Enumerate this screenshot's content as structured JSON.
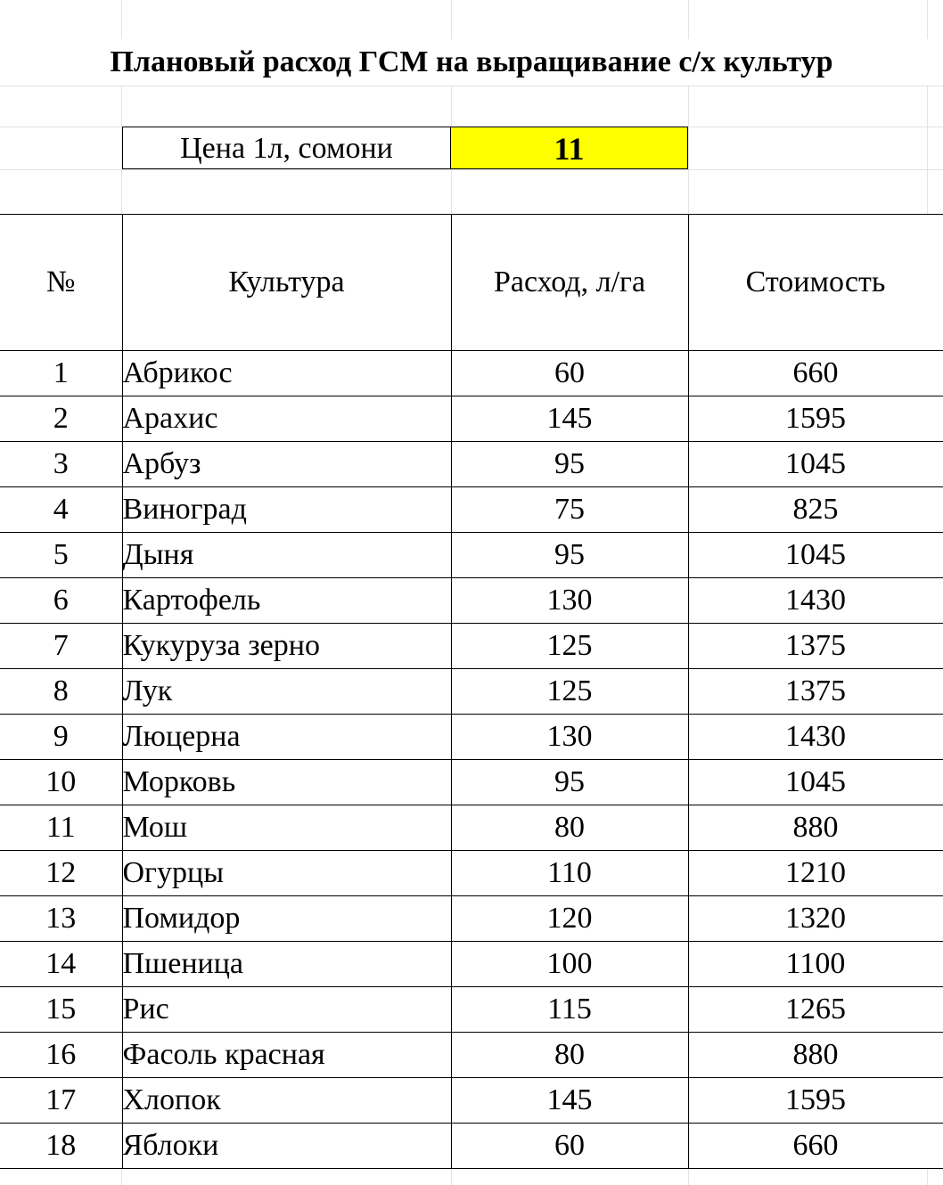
{
  "title": "Плановый расход ГСМ на выращивание с/х культур",
  "price": {
    "label": "Цена 1л, сомони",
    "value": "11",
    "highlight_color": "#ffff00"
  },
  "table": {
    "headers": [
      "№",
      "Культура",
      "Расход, л/га",
      "Стоимость"
    ],
    "rows": [
      {
        "num": "1",
        "crop": "Абрикос",
        "rate": "60",
        "cost": "660"
      },
      {
        "num": "2",
        "crop": "Арахис",
        "rate": "145",
        "cost": "1595"
      },
      {
        "num": "3",
        "crop": "Арбуз",
        "rate": "95",
        "cost": "1045"
      },
      {
        "num": "4",
        "crop": "Виноград",
        "rate": "75",
        "cost": "825"
      },
      {
        "num": "5",
        "crop": "Дыня",
        "rate": "95",
        "cost": "1045"
      },
      {
        "num": "6",
        "crop": "Картофель",
        "rate": "130",
        "cost": "1430"
      },
      {
        "num": "7",
        "crop": "Кукуруза зерно",
        "rate": "125",
        "cost": "1375"
      },
      {
        "num": "8",
        "crop": "Лук",
        "rate": "125",
        "cost": "1375"
      },
      {
        "num": "9",
        "crop": "Люцерна",
        "rate": "130",
        "cost": "1430"
      },
      {
        "num": "10",
        "crop": "Морковь",
        "rate": "95",
        "cost": "1045"
      },
      {
        "num": "11",
        "crop": "Мош",
        "rate": "80",
        "cost": "880"
      },
      {
        "num": "12",
        "crop": "Огурцы",
        "rate": "110",
        "cost": "1210"
      },
      {
        "num": "13",
        "crop": "Помидор",
        "rate": "120",
        "cost": "1320"
      },
      {
        "num": "14",
        "crop": "Пшеница",
        "rate": "100",
        "cost": "1100"
      },
      {
        "num": "15",
        "crop": "Рис",
        "rate": "115",
        "cost": "1265"
      },
      {
        "num": "16",
        "crop": "Фасоль красная",
        "rate": "80",
        "cost": "880"
      },
      {
        "num": "17",
        "crop": "Хлопок",
        "rate": "145",
        "cost": "1595"
      },
      {
        "num": "18",
        "crop": "Яблоки",
        "rate": "60",
        "cost": "660"
      }
    ]
  }
}
